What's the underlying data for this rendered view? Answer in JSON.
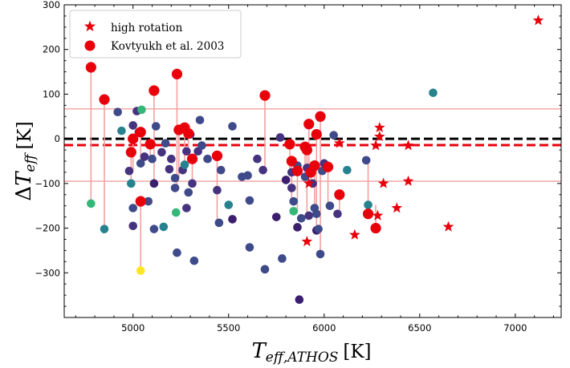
{
  "chart_data": {
    "type": "scatter",
    "xlabel": {
      "main": "T",
      "sub": "eff,ATHOS",
      "unit": "[K]"
    },
    "ylabel": {
      "prefix": "Δ",
      "main": "T",
      "sub": "eff",
      "unit": "[K]"
    },
    "xlim": [
      4640,
      7240
    ],
    "ylim": [
      -400,
      300
    ],
    "xticks": [
      5000,
      5500,
      6000,
      6500,
      7000
    ],
    "yticks": [
      -300,
      -200,
      -100,
      0,
      100,
      200,
      300
    ],
    "hlines": [
      {
        "y": 0,
        "style": "dashed",
        "color": "#000000"
      },
      {
        "y": -14,
        "style": "dashed",
        "color": "#e8000b"
      },
      {
        "y": 67,
        "style": "solid",
        "color": "#f4a0a0"
      },
      {
        "y": -95,
        "style": "solid",
        "color": "#f4a0a0"
      }
    ],
    "legend": {
      "position": "upper-left",
      "entries": [
        {
          "label": "high rotation",
          "marker": "star",
          "color": "#e8000b"
        },
        {
          "label": "Kovtyukh et al. 2003",
          "marker": "circle",
          "color": "#e8000b"
        }
      ]
    },
    "colors": {
      "high_rotation": "#e8000b",
      "kovtyukh": "#e8000b",
      "connector": "#f4a0a0",
      "dark": "#3b1f6e",
      "indigo": "#46337f",
      "slate": "#3e4a89",
      "teal": "#26828e",
      "green": "#35b779",
      "yellow": "#fde725"
    },
    "series": [
      {
        "name": "sample",
        "marker": "circle",
        "points": [
          {
            "x": 4780,
            "y": -145,
            "c": "green"
          },
          {
            "x": 4850,
            "y": -202,
            "c": "teal"
          },
          {
            "x": 4920,
            "y": 60,
            "c": "slate"
          },
          {
            "x": 4940,
            "y": 18,
            "c": "teal"
          },
          {
            "x": 4980,
            "y": -72,
            "c": "indigo"
          },
          {
            "x": 4990,
            "y": -100,
            "c": "teal"
          },
          {
            "x": 5000,
            "y": 30,
            "c": "indigo"
          },
          {
            "x": 5000,
            "y": -155,
            "c": "slate"
          },
          {
            "x": 5000,
            "y": -195,
            "c": "indigo"
          },
          {
            "x": 5020,
            "y": 62,
            "c": "indigo"
          },
          {
            "x": 5030,
            "y": 15,
            "c": "slate"
          },
          {
            "x": 5040,
            "y": -55,
            "c": "slate"
          },
          {
            "x": 5045,
            "y": 65,
            "c": "green"
          },
          {
            "x": 5040,
            "y": -295,
            "c": "yellow"
          },
          {
            "x": 5060,
            "y": -40,
            "c": "indigo"
          },
          {
            "x": 5080,
            "y": -140,
            "c": "slate"
          },
          {
            "x": 5100,
            "y": -45,
            "c": "slate"
          },
          {
            "x": 5110,
            "y": -100,
            "c": "dark"
          },
          {
            "x": 5110,
            "y": -202,
            "c": "slate"
          },
          {
            "x": 5120,
            "y": 28,
            "c": "slate"
          },
          {
            "x": 5150,
            "y": -30,
            "c": "indigo"
          },
          {
            "x": 5160,
            "y": -197,
            "c": "teal"
          },
          {
            "x": 5170,
            "y": -10,
            "c": "slate"
          },
          {
            "x": 5190,
            "y": -68,
            "c": "indigo"
          },
          {
            "x": 5200,
            "y": -45,
            "c": "indigo"
          },
          {
            "x": 5220,
            "y": -88,
            "c": "slate"
          },
          {
            "x": 5220,
            "y": -110,
            "c": "slate"
          },
          {
            "x": 5225,
            "y": -165,
            "c": "green"
          },
          {
            "x": 5230,
            "y": -255,
            "c": "slate"
          },
          {
            "x": 5240,
            "y": 20,
            "c": "slate"
          },
          {
            "x": 5260,
            "y": -70,
            "c": "indigo"
          },
          {
            "x": 5270,
            "y": -58,
            "c": "teal"
          },
          {
            "x": 5280,
            "y": -28,
            "c": "indigo"
          },
          {
            "x": 5290,
            "y": -120,
            "c": "slate"
          },
          {
            "x": 5280,
            "y": -155,
            "c": "indigo"
          },
          {
            "x": 5300,
            "y": 10,
            "c": "indigo"
          },
          {
            "x": 5310,
            "y": -100,
            "c": "indigo"
          },
          {
            "x": 5320,
            "y": -273,
            "c": "slate"
          },
          {
            "x": 5340,
            "y": -28,
            "c": "indigo"
          },
          {
            "x": 5350,
            "y": 42,
            "c": "slate"
          },
          {
            "x": 5360,
            "y": -15,
            "c": "slate"
          },
          {
            "x": 5390,
            "y": -45,
            "c": "slate"
          },
          {
            "x": 5440,
            "y": -115,
            "c": "indigo"
          },
          {
            "x": 5450,
            "y": -188,
            "c": "slate"
          },
          {
            "x": 5460,
            "y": -70,
            "c": "slate"
          },
          {
            "x": 5500,
            "y": -148,
            "c": "teal"
          },
          {
            "x": 5520,
            "y": 28,
            "c": "slate"
          },
          {
            "x": 5520,
            "y": -180,
            "c": "dark"
          },
          {
            "x": 5570,
            "y": -85,
            "c": "slate"
          },
          {
            "x": 5600,
            "y": -82,
            "c": "slate"
          },
          {
            "x": 5610,
            "y": -138,
            "c": "slate"
          },
          {
            "x": 5610,
            "y": -243,
            "c": "slate"
          },
          {
            "x": 5650,
            "y": -45,
            "c": "indigo"
          },
          {
            "x": 5680,
            "y": -70,
            "c": "indigo"
          },
          {
            "x": 5690,
            "y": -292,
            "c": "slate"
          },
          {
            "x": 5750,
            "y": -175,
            "c": "dark"
          },
          {
            "x": 5770,
            "y": 3,
            "c": "indigo"
          },
          {
            "x": 5780,
            "y": -268,
            "c": "slate"
          },
          {
            "x": 5800,
            "y": -92,
            "c": "dark"
          },
          {
            "x": 5820,
            "y": -12,
            "c": "indigo"
          },
          {
            "x": 5830,
            "y": -75,
            "c": "indigo"
          },
          {
            "x": 5830,
            "y": -110,
            "c": "indigo"
          },
          {
            "x": 5840,
            "y": -140,
            "c": "slate"
          },
          {
            "x": 5840,
            "y": -162,
            "c": "green"
          },
          {
            "x": 5860,
            "y": -60,
            "c": "slate"
          },
          {
            "x": 5860,
            "y": -198,
            "c": "dark"
          },
          {
            "x": 5870,
            "y": -360,
            "c": "dark"
          },
          {
            "x": 5880,
            "y": -178,
            "c": "slate"
          },
          {
            "x": 5900,
            "y": -85,
            "c": "slate"
          },
          {
            "x": 5910,
            "y": -65,
            "c": "indigo"
          },
          {
            "x": 5920,
            "y": -172,
            "c": "indigo"
          },
          {
            "x": 5940,
            "y": -100,
            "c": "indigo"
          },
          {
            "x": 5950,
            "y": -155,
            "c": "slate"
          },
          {
            "x": 5960,
            "y": -168,
            "c": "slate"
          },
          {
            "x": 5960,
            "y": -205,
            "c": "dark"
          },
          {
            "x": 5970,
            "y": -202,
            "c": "slate"
          },
          {
            "x": 5980,
            "y": -258,
            "c": "slate"
          },
          {
            "x": 5990,
            "y": -72,
            "c": "slate"
          },
          {
            "x": 6000,
            "y": -55,
            "c": "indigo"
          },
          {
            "x": 6030,
            "y": -150,
            "c": "slate"
          },
          {
            "x": 6050,
            "y": 8,
            "c": "slate"
          },
          {
            "x": 6070,
            "y": -168,
            "c": "indigo"
          },
          {
            "x": 6120,
            "y": -70,
            "c": "teal"
          },
          {
            "x": 6220,
            "y": -48,
            "c": "slate"
          },
          {
            "x": 6230,
            "y": -148,
            "c": "teal"
          },
          {
            "x": 6570,
            "y": 103,
            "c": "teal"
          }
        ]
      },
      {
        "name": "Kovtyukh et al. 2003",
        "marker": "circle",
        "points": [
          {
            "x": 4780,
            "y": 160,
            "from": -145
          },
          {
            "x": 4850,
            "y": 88,
            "from": -202
          },
          {
            "x": 4990,
            "y": -30,
            "from": -100
          },
          {
            "x": 5000,
            "y": 0,
            "from": -72
          },
          {
            "x": 5040,
            "y": -140,
            "from": -295
          },
          {
            "x": 5040,
            "y": 15,
            "from": -55
          },
          {
            "x": 5090,
            "y": -12,
            "from": -45
          },
          {
            "x": 5110,
            "y": 108,
            "from": -100
          },
          {
            "x": 5230,
            "y": 145,
            "from": -110
          },
          {
            "x": 5240,
            "y": 20,
            "from": -88
          },
          {
            "x": 5270,
            "y": 25,
            "from": -58
          },
          {
            "x": 5290,
            "y": 12,
            "from": -28
          },
          {
            "x": 5310,
            "y": -45,
            "from": -100
          },
          {
            "x": 5440,
            "y": -38,
            "from": -188
          },
          {
            "x": 5690,
            "y": 97,
            "from": -70
          },
          {
            "x": 5820,
            "y": -12,
            "from": -75
          },
          {
            "x": 5830,
            "y": -50,
            "from": -140
          },
          {
            "x": 5860,
            "y": -72,
            "from": -162
          },
          {
            "x": 5900,
            "y": -18,
            "from": -85
          },
          {
            "x": 5910,
            "y": -25,
            "from": -172
          },
          {
            "x": 5920,
            "y": 33,
            "from": -65
          },
          {
            "x": 5930,
            "y": -75,
            "from": -100
          },
          {
            "x": 5950,
            "y": -60,
            "from": -155
          },
          {
            "x": 5960,
            "y": 10,
            "from": -205
          },
          {
            "x": 5980,
            "y": 50,
            "from": -258
          },
          {
            "x": 6020,
            "y": -63,
            "from": -150
          },
          {
            "x": 6080,
            "y": -125,
            "from": -168
          },
          {
            "x": 6230,
            "y": -168,
            "from": -48
          },
          {
            "x": 6270,
            "y": -200,
            "from": -148
          }
        ]
      },
      {
        "name": "high rotation",
        "marker": "star",
        "points": [
          {
            "x": 5910,
            "y": -230
          },
          {
            "x": 5920,
            "y": -100
          },
          {
            "x": 6080,
            "y": -10
          },
          {
            "x": 6160,
            "y": -215
          },
          {
            "x": 6270,
            "y": -15
          },
          {
            "x": 6280,
            "y": -172
          },
          {
            "x": 6290,
            "y": 25
          },
          {
            "x": 6290,
            "y": 5
          },
          {
            "x": 6310,
            "y": -100
          },
          {
            "x": 6380,
            "y": -155
          },
          {
            "x": 6440,
            "y": -15
          },
          {
            "x": 6440,
            "y": -95
          },
          {
            "x": 6650,
            "y": -197
          },
          {
            "x": 7120,
            "y": 265
          }
        ]
      }
    ]
  }
}
